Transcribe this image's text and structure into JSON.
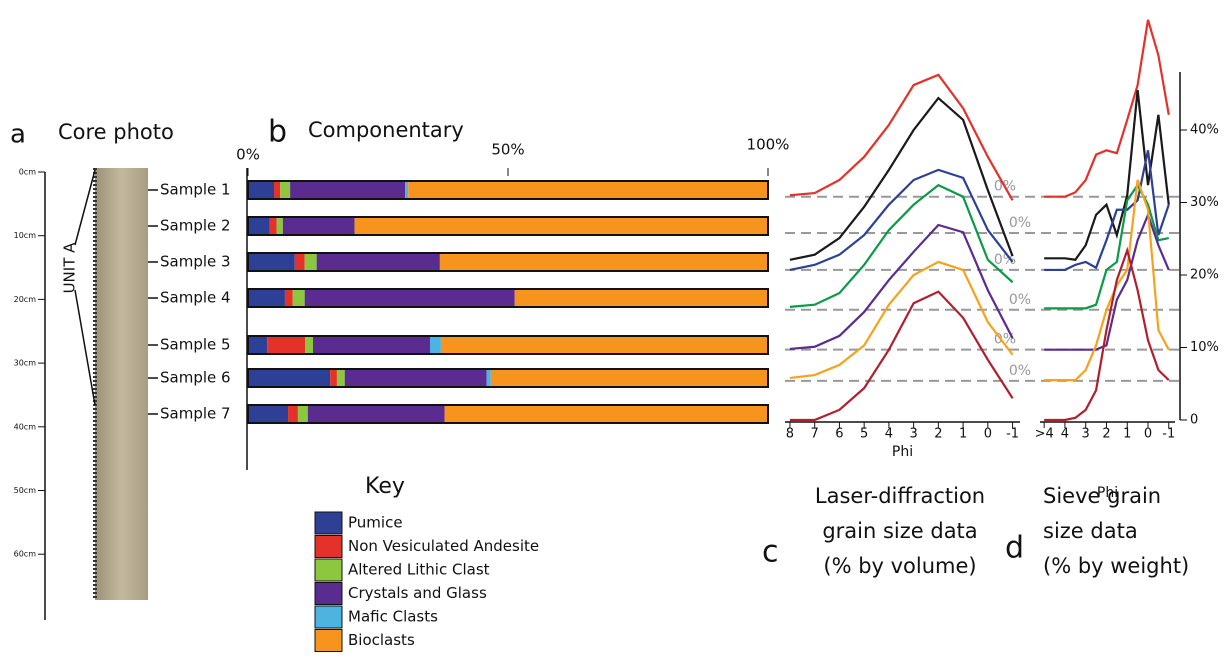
{
  "panels": {
    "a": "a",
    "b": "b",
    "c": "c",
    "d": "d"
  },
  "core_photo": {
    "title": "Core photo",
    "unit": "UNIT A",
    "depth_ticks": [
      "0cm",
      "10cm",
      "20cm",
      "30cm",
      "40cm",
      "50cm",
      "60cm"
    ]
  },
  "chart_data": [
    {
      "type": "bar",
      "orientation": "horizontal",
      "stacked": true,
      "title": "Componentary",
      "legend_title": "Key",
      "categories": [
        "Sample 1",
        "Sample 2",
        "Sample 3",
        "Sample 4",
        "Sample 5",
        "Sample 6",
        "Sample 7"
      ],
      "xlim": [
        0,
        100
      ],
      "xticks": [
        {
          "value": 0,
          "label": "0%"
        },
        {
          "value": 50,
          "label": "50%"
        },
        {
          "value": 100,
          "label": "100%"
        }
      ],
      "series": [
        {
          "name": "Pumice",
          "color": "#2e3f96",
          "values": [
            5.0,
            4.2,
            9.0,
            7.1,
            3.7,
            15.8,
            7.7
          ]
        },
        {
          "name": "Non Vesiculated Andesite",
          "color": "#e4312a",
          "values": [
            1.2,
            1.3,
            1.9,
            1.5,
            7.3,
            1.3,
            1.9
          ]
        },
        {
          "name": "Altered Lithic Clast",
          "color": "#8dc63f",
          "values": [
            1.9,
            1.2,
            2.3,
            2.3,
            1.5,
            1.5,
            1.9
          ]
        },
        {
          "name": "Crystals and Glass",
          "color": "#5b2c8f",
          "values": [
            22.1,
            13.8,
            23.7,
            40.4,
            22.5,
            27.3,
            26.3
          ]
        },
        {
          "name": "Mafic Clasts",
          "color": "#4db3e0",
          "values": [
            0.6,
            0,
            0,
            0,
            2.1,
            0.8,
            0
          ]
        },
        {
          "name": "Bioclasts",
          "color": "#f7941d",
          "values": [
            69.2,
            79.5,
            63.1,
            48.7,
            62.9,
            53.3,
            62.2
          ]
        }
      ]
    },
    {
      "type": "line",
      "title": [
        "Laser-diffraction",
        "grain size data",
        "(% by volume)"
      ],
      "xlabel": "Phi",
      "x": [
        8,
        7,
        6,
        5,
        4,
        3,
        2,
        1,
        0,
        -1
      ],
      "xlim": [
        8.2,
        -1.3
      ],
      "xticks": [
        8,
        7,
        6,
        5,
        4,
        3,
        2,
        1,
        0,
        -1
      ],
      "ylim": [
        0,
        48
      ],
      "baselines": [
        {
          "value": 30.8,
          "label": "0%"
        },
        {
          "value": 25.8,
          "label": "0%"
        },
        {
          "value": 20.7,
          "label": "0%"
        },
        {
          "value": 15.2,
          "label": "0%"
        },
        {
          "value": 9.7,
          "label": "0%"
        },
        {
          "value": 5.4,
          "label": "0%"
        }
      ],
      "series": [
        {
          "color": "#e4312a",
          "values": [
            31.0,
            31.3,
            33.1,
            36.3,
            40.7,
            46.2,
            47.6,
            43.0,
            36.3,
            30.3
          ]
        },
        {
          "color": "#1a1a1a",
          "values": [
            22.1,
            22.8,
            25.1,
            29.4,
            34.5,
            40.0,
            44.4,
            41.4,
            31.7,
            22.6
          ]
        },
        {
          "color": "#2e3f96",
          "values": [
            20.7,
            21.4,
            22.8,
            25.5,
            29.7,
            33.1,
            34.5,
            33.4,
            26.2,
            21.8
          ]
        },
        {
          "color": "#0a9a48",
          "values": [
            15.6,
            15.9,
            17.5,
            21.4,
            26.2,
            29.7,
            32.4,
            30.8,
            22.1,
            19.0
          ]
        },
        {
          "color": "#5b2c8f",
          "values": [
            9.8,
            10.1,
            11.6,
            14.9,
            19.3,
            23.2,
            26.9,
            25.9,
            17.9,
            11.3
          ]
        },
        {
          "color": "#f7a21d",
          "values": [
            5.8,
            6.2,
            7.6,
            10.3,
            15.9,
            20.0,
            21.8,
            20.7,
            13.5,
            9.0
          ]
        },
        {
          "color": "#b01f2e",
          "values": [
            0,
            0,
            1.4,
            4.4,
            9.7,
            16.1,
            17.7,
            14.1,
            8.3,
            3.0
          ]
        }
      ]
    },
    {
      "type": "line",
      "title": [
        "Sieve grain",
        "size data",
        "(% by weight)"
      ],
      "xlabel": "Phi",
      "x": [
        5,
        4,
        3.5,
        3,
        2.5,
        2,
        1.5,
        1,
        0.5,
        0,
        -0.5,
        -1
      ],
      "xlim": [
        5.2,
        -1.3
      ],
      "xticks": [
        {
          "value": 5,
          "label": ">4"
        },
        4,
        3,
        2,
        1,
        0,
        -1
      ],
      "ylim": [
        0,
        48
      ],
      "yticks": [
        0,
        {
          "value": 10,
          "label": "10%"
        },
        {
          "value": 20,
          "label": "20%"
        },
        {
          "value": 30,
          "label": "30%"
        },
        {
          "value": 40,
          "label": "40%"
        }
      ],
      "series": [
        {
          "color": "#e4312a",
          "values": [
            30.8,
            30.8,
            31.4,
            33.1,
            36.6,
            37.2,
            36.8,
            41.4,
            46.2,
            55.2,
            50.3,
            42.1
          ]
        },
        {
          "color": "#1a1a1a",
          "values": [
            22.3,
            22.3,
            22.1,
            24.1,
            28.3,
            29.7,
            25.5,
            31.0,
            45.5,
            32.4,
            42.1,
            29.7
          ]
        },
        {
          "color": "#2e3f96",
          "values": [
            20.7,
            20.7,
            21.4,
            21.8,
            21.0,
            24.8,
            29.0,
            29.0,
            30.3,
            37.2,
            25.5,
            29.7
          ]
        },
        {
          "color": "#0a9a48",
          "values": [
            15.4,
            15.4,
            15.4,
            15.4,
            15.9,
            20.7,
            21.8,
            30.3,
            32.4,
            29.7,
            24.8,
            25.1
          ]
        },
        {
          "color": "#5b2c8f",
          "values": [
            9.7,
            9.7,
            9.7,
            9.7,
            9.7,
            10.3,
            16.6,
            19.3,
            24.8,
            28.3,
            24.1,
            20.7
          ]
        },
        {
          "color": "#f7a21d",
          "values": [
            5.5,
            5.5,
            5.5,
            6.9,
            10.3,
            15.2,
            18.6,
            20.7,
            33.1,
            29.0,
            12.4,
            9.7
          ]
        },
        {
          "color": "#b01f2e",
          "values": [
            0,
            0,
            0.3,
            1.4,
            4.1,
            12.4,
            19.3,
            23.4,
            17.9,
            11.0,
            6.9,
            5.5
          ]
        }
      ]
    }
  ]
}
